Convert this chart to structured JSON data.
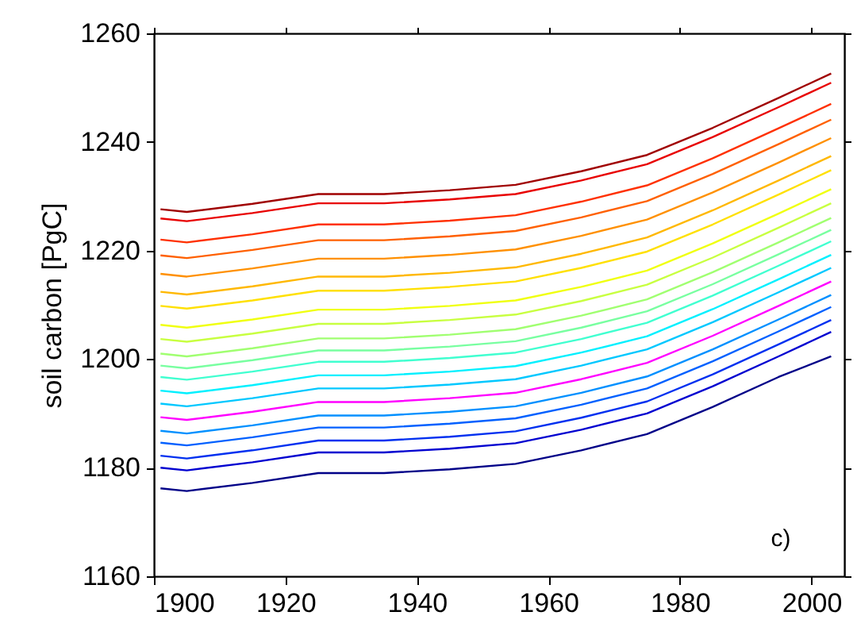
{
  "chart_data": {
    "type": "line",
    "ylabel": "soil carbon [PgC]",
    "annotations": [
      "c)"
    ],
    "x": [
      1901,
      1905,
      1915,
      1925,
      1935,
      1945,
      1955,
      1965,
      1975,
      1985,
      1995,
      2003
    ],
    "xlim": [
      1900,
      2005
    ],
    "xticks": [
      1900,
      1920,
      1940,
      1960,
      1980,
      2000
    ],
    "ylim": [
      1160,
      1260
    ],
    "yticks": [
      1160,
      1180,
      1200,
      1220,
      1240,
      1260
    ],
    "grid": false,
    "marker": "none",
    "line_style": "solid",
    "series": [
      {
        "color": "#a00000",
        "values": [
          1227.6,
          1227.1,
          1228.6,
          1230.4,
          1230.4,
          1231.1,
          1232.1,
          1234.6,
          1237.6,
          1242.6,
          1248.1,
          1252.6
        ]
      },
      {
        "color": "#e80000",
        "values": [
          1225.9,
          1225.4,
          1226.9,
          1228.7,
          1228.7,
          1229.4,
          1230.4,
          1232.9,
          1235.9,
          1240.9,
          1246.4,
          1250.9
        ]
      },
      {
        "color": "#ff3000",
        "values": [
          1222.0,
          1221.5,
          1223.0,
          1224.8,
          1224.8,
          1225.5,
          1226.5,
          1229.0,
          1232.0,
          1237.0,
          1242.5,
          1247.0
        ]
      },
      {
        "color": "#ff6000",
        "values": [
          1219.1,
          1218.6,
          1220.1,
          1221.9,
          1221.9,
          1222.6,
          1223.6,
          1226.1,
          1229.1,
          1234.1,
          1239.6,
          1244.1
        ]
      },
      {
        "color": "#ff9000",
        "values": [
          1215.7,
          1215.2,
          1216.7,
          1218.5,
          1218.5,
          1219.2,
          1220.2,
          1222.7,
          1225.7,
          1230.7,
          1236.2,
          1240.7
        ]
      },
      {
        "color": "#ffb800",
        "values": [
          1212.4,
          1211.9,
          1213.4,
          1215.2,
          1215.2,
          1215.9,
          1216.9,
          1219.4,
          1222.4,
          1227.4,
          1232.9,
          1237.4
        ]
      },
      {
        "color": "#ffe000",
        "values": [
          1209.8,
          1209.3,
          1210.8,
          1212.6,
          1212.6,
          1213.3,
          1214.3,
          1216.8,
          1219.8,
          1224.8,
          1230.3,
          1234.8
        ]
      },
      {
        "color": "#f0ff10",
        "values": [
          1206.3,
          1205.8,
          1207.3,
          1209.1,
          1209.1,
          1209.8,
          1210.8,
          1213.3,
          1216.3,
          1221.3,
          1226.8,
          1231.3
        ]
      },
      {
        "color": "#c8ff40",
        "values": [
          1203.7,
          1203.2,
          1204.7,
          1206.5,
          1206.5,
          1207.2,
          1208.2,
          1210.7,
          1213.7,
          1218.7,
          1224.2,
          1228.7
        ]
      },
      {
        "color": "#a0ff70",
        "values": [
          1201.0,
          1200.5,
          1202.0,
          1203.8,
          1203.8,
          1204.5,
          1205.5,
          1208.0,
          1211.0,
          1216.0,
          1221.5,
          1226.0
        ]
      },
      {
        "color": "#78ffa0",
        "values": [
          1198.8,
          1198.3,
          1199.8,
          1201.6,
          1201.6,
          1202.3,
          1203.3,
          1205.8,
          1208.8,
          1213.8,
          1219.3,
          1223.8
        ]
      },
      {
        "color": "#40ffd0",
        "values": [
          1196.7,
          1196.2,
          1197.7,
          1199.5,
          1199.5,
          1200.2,
          1201.2,
          1203.7,
          1206.7,
          1211.7,
          1217.2,
          1221.7
        ]
      },
      {
        "color": "#00f0ff",
        "values": [
          1194.2,
          1193.7,
          1195.2,
          1197.0,
          1197.0,
          1197.7,
          1198.7,
          1201.2,
          1204.2,
          1209.2,
          1214.7,
          1219.2
        ]
      },
      {
        "color": "#00c8ff",
        "values": [
          1191.8,
          1191.3,
          1192.8,
          1194.6,
          1194.6,
          1195.3,
          1196.3,
          1198.8,
          1201.8,
          1206.8,
          1212.3,
          1216.8
        ]
      },
      {
        "color": "#ff00ff",
        "values": [
          1189.3,
          1188.8,
          1190.3,
          1192.1,
          1192.1,
          1192.8,
          1193.8,
          1196.3,
          1199.3,
          1204.3,
          1209.8,
          1214.3
        ]
      },
      {
        "color": "#0090ff",
        "values": [
          1186.8,
          1186.3,
          1187.8,
          1189.6,
          1189.6,
          1190.3,
          1191.3,
          1193.8,
          1196.8,
          1201.8,
          1207.3,
          1211.8
        ]
      },
      {
        "color": "#0060ff",
        "values": [
          1184.6,
          1184.1,
          1185.6,
          1187.4,
          1187.4,
          1188.1,
          1189.1,
          1191.6,
          1194.6,
          1199.6,
          1205.1,
          1209.6
        ]
      },
      {
        "color": "#0030f0",
        "values": [
          1182.2,
          1181.7,
          1183.2,
          1185.0,
          1185.0,
          1185.7,
          1186.7,
          1189.2,
          1192.2,
          1197.2,
          1202.7,
          1207.2
        ]
      },
      {
        "color": "#0000d0",
        "values": [
          1180.0,
          1179.5,
          1181.0,
          1182.8,
          1182.8,
          1183.5,
          1184.5,
          1187.0,
          1190.0,
          1195.0,
          1200.5,
          1205.0
        ]
      },
      {
        "color": "#000088",
        "values": [
          1176.2,
          1175.7,
          1177.2,
          1179.0,
          1179.0,
          1179.7,
          1180.7,
          1183.2,
          1186.2,
          1191.2,
          1196.7,
          1200.5
        ]
      }
    ]
  }
}
